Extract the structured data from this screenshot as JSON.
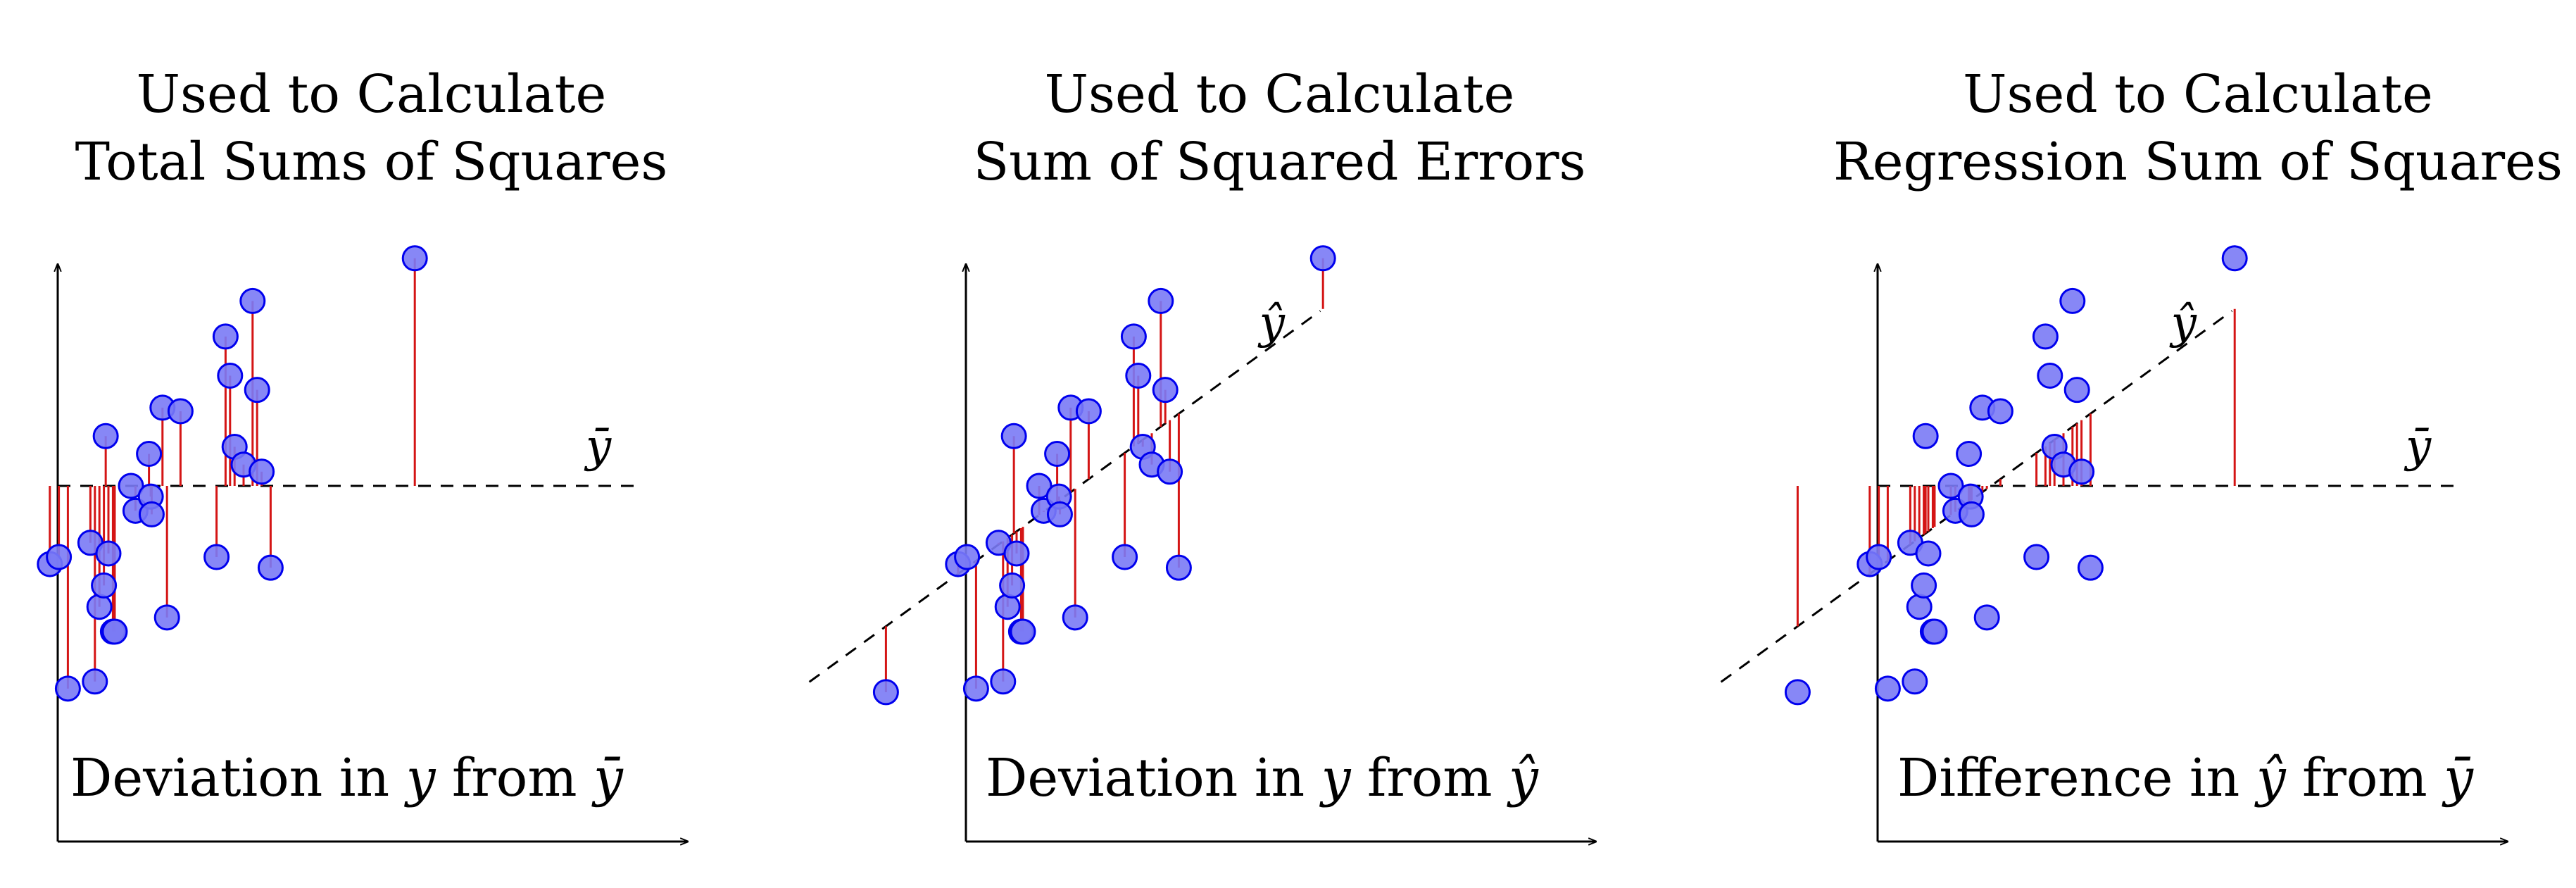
{
  "colors": {
    "point_fill": "#7a7af5",
    "point_stroke": "#0000ee",
    "deviation_line": "#d41515",
    "axis": "#000000"
  },
  "ref_symbols": {
    "ybar": "ȳ",
    "yhat": "ŷ"
  },
  "panels": [
    {
      "title_line1": "Used to Calculate",
      "title_line2": "Total Sums of Squares",
      "caption": {
        "pre": "Deviation in ",
        "var1": "y",
        "mid": " from ",
        "var2": "ȳ"
      },
      "reference_lines": [
        "ybar"
      ],
      "deviation": "y_from_ybar"
    },
    {
      "title_line1": "Used to Calculate",
      "title_line2": "Sum of Squared Errors",
      "caption": {
        "pre": "Deviation in ",
        "var1": "y",
        "mid": " from ",
        "var2": "ŷ"
      },
      "reference_lines": [
        "yhat"
      ],
      "deviation": "y_from_yhat"
    },
    {
      "title_line1": "Used to Calculate",
      "title_line2": "Regression Sum of Squares",
      "caption": {
        "pre": "Difference in ",
        "var1": "ŷ",
        "mid": " from ",
        "var2": "ȳ"
      },
      "reference_lines": [
        "ybar",
        "yhat"
      ],
      "deviation": "yhat_from_ybar"
    }
  ],
  "chart_data": {
    "type": "scatter",
    "y_mean": 0,
    "regression": {
      "intercept": 0.05,
      "slope": 0.92
    },
    "points": [
      {
        "x": -2.2,
        "y": -2.9
      },
      {
        "x": -1.4,
        "y": -1.1
      },
      {
        "x": -1.3,
        "y": -1.0
      },
      {
        "x": -1.2,
        "y": -2.85
      },
      {
        "x": -0.95,
        "y": -0.8
      },
      {
        "x": -0.9,
        "y": -2.75
      },
      {
        "x": -0.85,
        "y": -1.7
      },
      {
        "x": -0.8,
        "y": -1.4
      },
      {
        "x": -0.78,
        "y": 0.7
      },
      {
        "x": -0.75,
        "y": -0.95
      },
      {
        "x": -0.7,
        "y": -2.05
      },
      {
        "x": -0.68,
        "y": -2.05
      },
      {
        "x": -0.5,
        "y": 0.0
      },
      {
        "x": -0.45,
        "y": -0.35
      },
      {
        "x": -0.3,
        "y": 0.45
      },
      {
        "x": -0.28,
        "y": -0.15
      },
      {
        "x": -0.27,
        "y": -0.4
      },
      {
        "x": -0.15,
        "y": 1.1
      },
      {
        "x": -0.1,
        "y": -1.85
      },
      {
        "x": 0.05,
        "y": 1.05
      },
      {
        "x": 0.45,
        "y": -1.0
      },
      {
        "x": 0.55,
        "y": 2.1
      },
      {
        "x": 0.6,
        "y": 1.55
      },
      {
        "x": 0.65,
        "y": 0.55
      },
      {
        "x": 0.75,
        "y": 0.3
      },
      {
        "x": 0.85,
        "y": 2.6
      },
      {
        "x": 0.9,
        "y": 1.35
      },
      {
        "x": 0.95,
        "y": 0.2
      },
      {
        "x": 1.05,
        "y": -1.15
      },
      {
        "x": 2.65,
        "y": 3.2
      }
    ]
  }
}
